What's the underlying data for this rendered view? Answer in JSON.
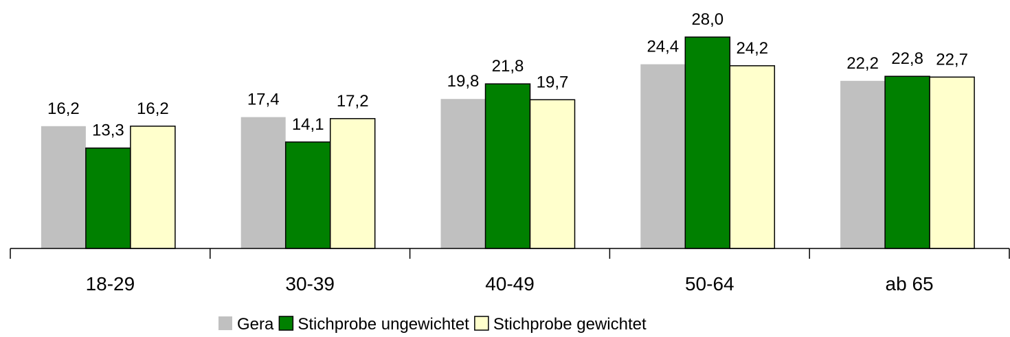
{
  "chart_data": {
    "type": "bar",
    "categories": [
      "18-29",
      "30-39",
      "40-49",
      "50-64",
      "ab 65"
    ],
    "series": [
      {
        "name": "Gera",
        "color": "#c0c0c0",
        "outline": false,
        "values": [
          16.2,
          17.4,
          19.8,
          24.4,
          22.2
        ],
        "value_labels": [
          "16,2",
          "17,4",
          "19,8",
          "24,4",
          "22,2"
        ]
      },
      {
        "name": "Stichprobe ungewichtet",
        "color": "#008000",
        "outline": true,
        "values": [
          13.3,
          14.1,
          21.8,
          28.0,
          22.8
        ],
        "value_labels": [
          "13,3",
          "14,1",
          "21,8",
          "28,0",
          "22,8"
        ]
      },
      {
        "name": "Stichprobe gewichtet",
        "color": "#ffffcc",
        "outline": true,
        "values": [
          16.2,
          17.2,
          19.7,
          24.2,
          22.7
        ],
        "value_labels": [
          "16,2",
          "17,2",
          "19,7",
          "24,2",
          "22,7"
        ]
      }
    ],
    "ylim": [
      0,
      32
    ],
    "legend": "bottom"
  }
}
